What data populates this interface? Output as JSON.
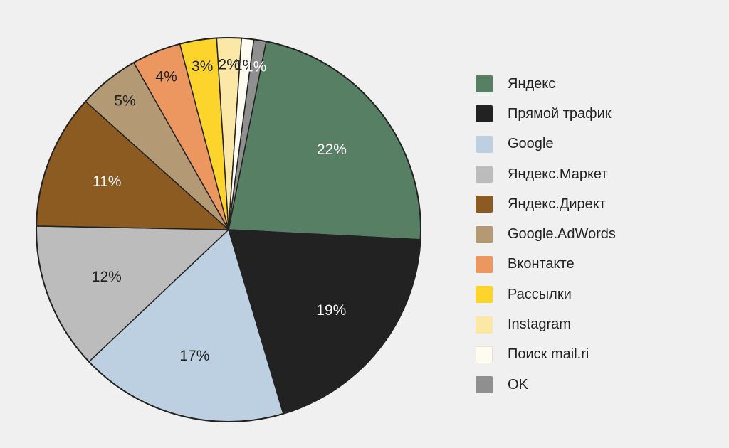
{
  "chart_data": {
    "type": "pie",
    "slices": [
      {
        "label": "Яндекс",
        "value": 22,
        "display": "22%",
        "color": "#567f63",
        "text_color": "#ffffff"
      },
      {
        "label": "Прямой трафик",
        "value": 19,
        "display": "19%",
        "color": "#222222",
        "text_color": "#ffffff"
      },
      {
        "label": "Google",
        "value": 17,
        "display": "17%",
        "color": "#bcd0e2",
        "text_color": "#222222"
      },
      {
        "label": "Яндекс.Маркет",
        "value": 12,
        "display": "12%",
        "color": "#bcbcbc",
        "text_color": "#222222"
      },
      {
        "label": "Яндекс.Директ",
        "value": 11,
        "display": "11%",
        "color": "#8c5b22",
        "text_color": "#ffffff"
      },
      {
        "label": "Google.AdWords",
        "value": 5,
        "display": "5%",
        "color": "#b39a74",
        "text_color": "#222222"
      },
      {
        "label": "Вконтакте",
        "value": 4,
        "display": "4%",
        "color": "#ec9760",
        "text_color": "#222222"
      },
      {
        "label": "Рассылки",
        "value": 3,
        "display": "3%",
        "color": "#fcd42c",
        "text_color": "#222222"
      },
      {
        "label": "Instagram",
        "value": 2,
        "display": "2%",
        "color": "#fbe8a6",
        "text_color": "#222222"
      },
      {
        "label": "Поиск mail.ri",
        "value": 1,
        "display": "1%",
        "color": "#fefcf0",
        "text_color": "#222222"
      },
      {
        "label": "OK",
        "value": 1,
        "display": "1%",
        "color": "#8f8f8f",
        "text_color": "#ffffff"
      }
    ],
    "start_angle_deg": 11.3,
    "legend_position": "right"
  }
}
